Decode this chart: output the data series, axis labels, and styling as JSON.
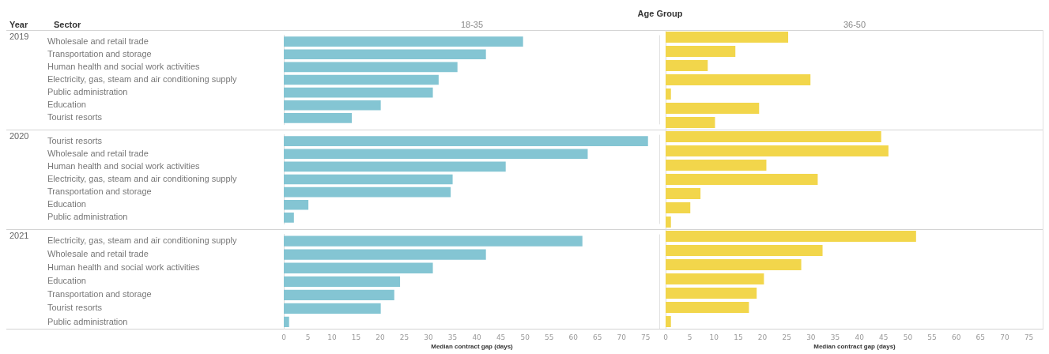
{
  "chart_data": [
    {
      "type": "bar",
      "orientation": "horizontal",
      "title": "18-35",
      "ylabel": "2019",
      "annotations": [
        "Age Group",
        "Year",
        "Sector"
      ],
      "categories": [
        "Wholesale and retail trade",
        "Transportation and storage",
        "Human health and social work activities",
        "Electricity, gas, steam and air conditioning supply",
        "Public administration",
        "Education",
        "Tourist resorts"
      ],
      "values": [
        49.6,
        41.9,
        36,
        32.1,
        30.9,
        20.1,
        14.1
      ],
      "color": "#84c5d3",
      "xlim": [
        0,
        78
      ],
      "xticks": [
        0,
        5,
        10,
        15,
        20,
        25,
        30,
        35,
        40,
        45,
        50,
        55,
        60,
        65,
        70,
        75
      ],
      "tick_labels": "y"
    },
    {
      "type": "bar",
      "orientation": "horizontal",
      "title": "36-50",
      "categories": [
        "Wholesale and retail trade",
        "Transportation and storage",
        "Human health and social work activities",
        "Electricity, gas, steam and air conditioning supply",
        "Public administration",
        "Education",
        "Tourist resorts"
      ],
      "values": [
        25.3,
        14.4,
        8.7,
        29.9,
        1.1,
        19.3,
        10.2
      ],
      "color": "#f2d64b",
      "xlim": [
        0,
        78
      ],
      "xticks": [
        0,
        5,
        10,
        15,
        20,
        25,
        30,
        35,
        40,
        45,
        50,
        55,
        60,
        65,
        70,
        75
      ],
      "tick_labels": false
    },
    {
      "type": "bar",
      "orientation": "horizontal",
      "ylabel": "2020",
      "categories": [
        "Tourist resorts",
        "Wholesale and retail trade",
        "Human health and social work activities",
        "Electricity, gas, steam and air conditioning supply",
        "Transportation and storage",
        "Education",
        "Public administration"
      ],
      "values": [
        75.5,
        63,
        46,
        35,
        34.6,
        5.1,
        2.1
      ],
      "color": "#84c5d3",
      "xlim": [
        0,
        78
      ],
      "xticks": [
        0,
        5,
        10,
        15,
        20,
        25,
        30,
        35,
        40,
        45,
        50,
        55,
        60,
        65,
        70,
        75
      ],
      "tick_labels": "y"
    },
    {
      "type": "bar",
      "orientation": "horizontal",
      "categories": [
        "Tourist resorts",
        "Wholesale and retail trade",
        "Human health and social work activities",
        "Electricity, gas, steam and air conditioning supply",
        "Transportation and storage",
        "Education",
        "Public administration"
      ],
      "values": [
        44.5,
        46,
        20.8,
        31.4,
        7.2,
        5.1,
        1.1
      ],
      "color": "#f2d64b",
      "xlim": [
        0,
        78
      ],
      "xticks": [
        0,
        5,
        10,
        15,
        20,
        25,
        30,
        35,
        40,
        45,
        50,
        55,
        60,
        65,
        70,
        75
      ],
      "tick_labels": false
    },
    {
      "type": "bar",
      "orientation": "horizontal",
      "ylabel": "2021",
      "xlabel": "Median contract gap (days)",
      "categories": [
        "Electricity, gas, steam and air conditioning supply",
        "Wholesale and retail trade",
        "Human health and social work activities",
        "Education",
        "Transportation and storage",
        "Tourist resorts",
        "Public administration"
      ],
      "values": [
        61.9,
        41.9,
        30.9,
        24.1,
        22.9,
        20.1,
        1.1
      ],
      "color": "#84c5d3",
      "xlim": [
        0,
        78
      ],
      "xticks": [
        0,
        5,
        10,
        15,
        20,
        25,
        30,
        35,
        40,
        45,
        50,
        55,
        60,
        65,
        70,
        75
      ]
    },
    {
      "type": "bar",
      "orientation": "horizontal",
      "xlabel": "Median contract gap (days)",
      "categories": [
        "Electricity, gas, steam and air conditioning supply",
        "Wholesale and retail trade",
        "Human health and social work activities",
        "Education",
        "Transportation and storage",
        "Tourist resorts",
        "Public administration"
      ],
      "values": [
        51.7,
        32.4,
        28,
        20.3,
        18.8,
        17.2,
        1.1
      ],
      "color": "#f2d64b",
      "xlim": [
        0,
        78
      ],
      "xticks": [
        0,
        5,
        10,
        15,
        20,
        25,
        30,
        35,
        40,
        45,
        50,
        55,
        60,
        65,
        70,
        75
      ],
      "tick_labels": "x"
    }
  ]
}
